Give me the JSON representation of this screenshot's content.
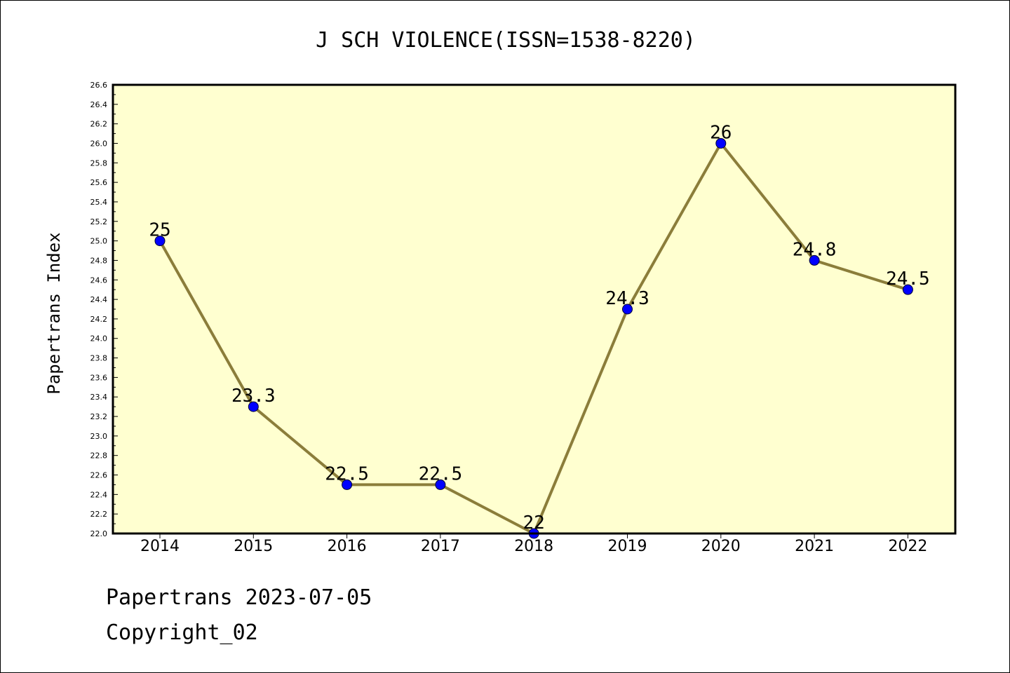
{
  "chart_data": {
    "type": "line",
    "title": "J SCH VIOLENCE(ISSN=1538-8220)",
    "xlabel": "",
    "ylabel": "Papertrans Index",
    "categories": [
      "2014",
      "2015",
      "2016",
      "2017",
      "2018",
      "2019",
      "2020",
      "2021",
      "2022"
    ],
    "values": [
      25,
      23.3,
      22.5,
      22.5,
      22,
      24.3,
      26,
      24.8,
      24.5
    ],
    "data_labels": [
      "25",
      "23.3",
      "22.5",
      "22.5",
      "22",
      "24.3",
      "26",
      "24.8",
      "24.5"
    ],
    "ylim": [
      22.0,
      26.6
    ],
    "yticks": [
      "22.0",
      "22.2",
      "22.4",
      "22.6",
      "22.8",
      "23.0",
      "23.2",
      "23.4",
      "23.6",
      "23.8",
      "24.0",
      "24.2",
      "24.4",
      "24.6",
      "24.8",
      "25.0",
      "25.2",
      "25.4",
      "25.6",
      "25.8",
      "26.0",
      "26.2",
      "26.4",
      "26.6"
    ],
    "grid": false,
    "colors": {
      "line": "#8b7d3a",
      "marker": "#0000ff",
      "plot_bg": "#ffffd0"
    }
  },
  "footer": {
    "date_text": "Papertrans 2023-07-05",
    "copyright": "Copyright_02"
  }
}
